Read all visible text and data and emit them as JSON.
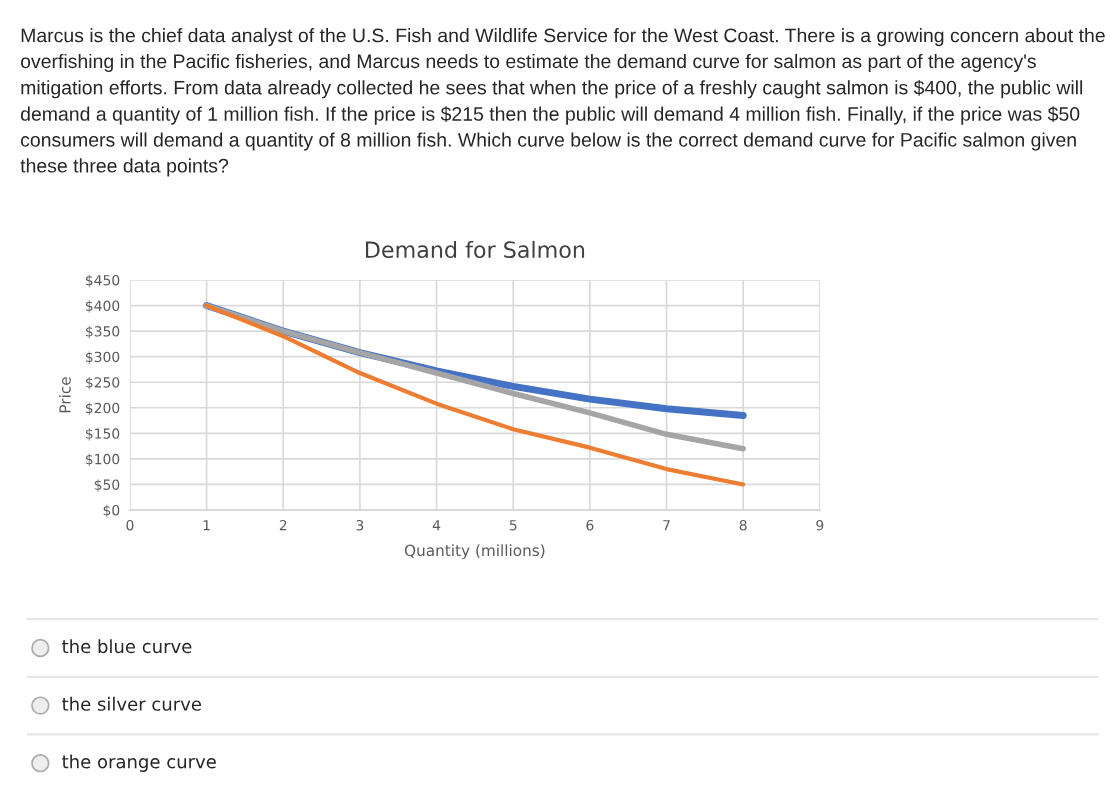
{
  "chart_data": {
    "type": "line",
    "title": "Demand for Salmon",
    "xlabel": "Quantity (millions)",
    "ylabel": "Price",
    "x": [
      1,
      2,
      3,
      4,
      5,
      6,
      7,
      8
    ],
    "series": [
      {
        "color": "#4472c4",
        "values": [
          400,
          350,
          308,
          272,
          242,
          217,
          198,
          185
        ]
      },
      {
        "color": "#a5a5a5",
        "values": [
          400,
          350,
          308,
          268,
          228,
          190,
          148,
          120
        ]
      },
      {
        "color": "#ed7d31",
        "values": [
          400,
          340,
          268,
          208,
          158,
          122,
          80,
          50
        ]
      }
    ],
    "xlim": [
      0,
      9
    ],
    "xticks": [
      0,
      1,
      2,
      3,
      4,
      5,
      6,
      7,
      8,
      9
    ],
    "ylim": [
      0,
      450
    ],
    "yticks": [
      {
        "value": 0,
        "label": "$0"
      },
      {
        "value": 50,
        "label": "$50"
      },
      {
        "value": 100,
        "label": "$100"
      },
      {
        "value": 150,
        "label": "$150"
      },
      {
        "value": 200,
        "label": "$200"
      },
      {
        "value": 250,
        "label": "$250"
      },
      {
        "value": 300,
        "label": "$300"
      },
      {
        "value": 350,
        "label": "$350"
      },
      {
        "value": 400,
        "label": "$400"
      },
      {
        "value": 450,
        "label": "$450"
      }
    ],
    "grid": true,
    "marker": "none",
    "line_style": "solid",
    "annotations": [
      "Marcus is the chief data analyst of the U.S. Fish and Wildlife Service for the West Coast. There is a growing concern about the overfishing in the Pacific fisheries, and Marcus needs to estimate the demand curve for salmon as part of the agency's mitigation efforts. From data already collected he sees that when the price of a freshly caught salmon is $400, the public will demand a quantity of 1 million fish. If the price is $215 then the public will demand 4 million fish. Finally, if the price was $50 consumers will demand a quantity of 8 million fish. Which curve below is the correct demand curve for Pacific salmon given these three data points?",
      "the blue curve",
      "the silver curve",
      "the orange curve"
    ]
  }
}
